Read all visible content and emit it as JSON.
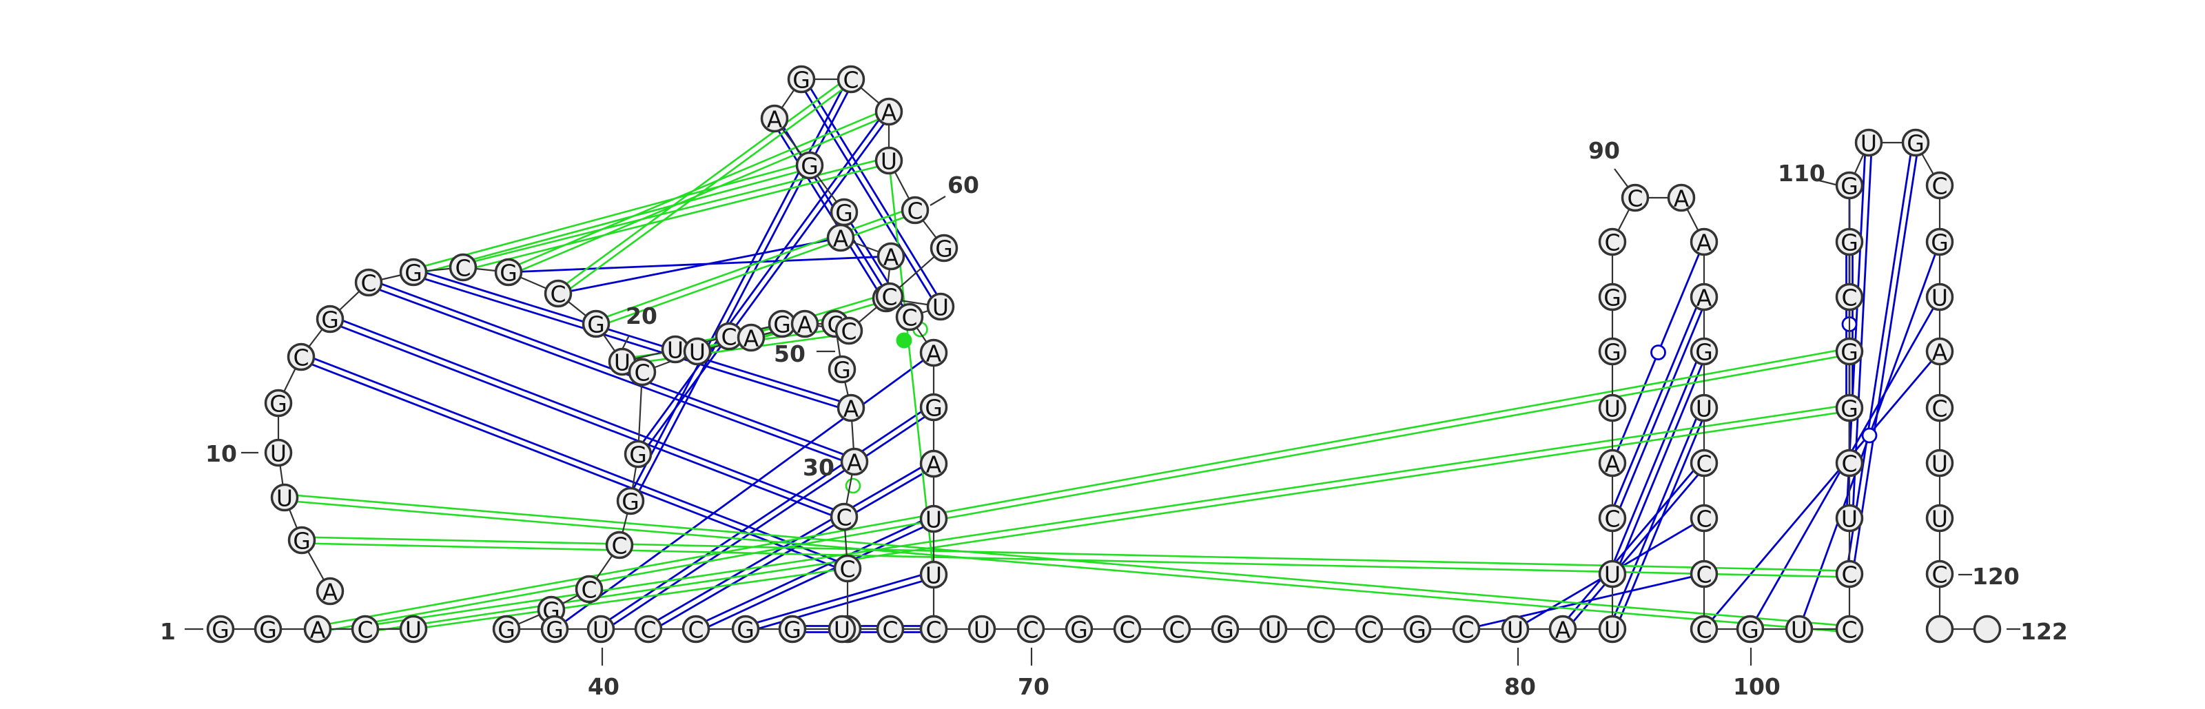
{
  "colors": {
    "pair": "#0000cc",
    "interaction": "#22dd22",
    "backbone": "#333333",
    "node_fill": "#eeeeee"
  },
  "sequence": "GGACUAGUUGCGCGCGCGUUCGCGAACCGUUUAGACUUAAGGAGCAUCGCCAAUCGGCCGGGUCCGGUCCUCGCCGUCCGCUAUUCAUGGCCAAAGUCCCCGUCCUCGGCGGUGCGUACUUC",
  "number_labels": [
    {
      "text": "1"
    },
    {
      "text": "10"
    },
    {
      "text": "20"
    },
    {
      "text": "30"
    },
    {
      "text": "40"
    },
    {
      "text": "50"
    },
    {
      "text": "60"
    },
    {
      "text": "70"
    },
    {
      "text": "80"
    },
    {
      "text": "90"
    },
    {
      "text": "100"
    },
    {
      "text": "110"
    },
    {
      "text": "120"
    },
    {
      "text": "122"
    }
  ]
}
